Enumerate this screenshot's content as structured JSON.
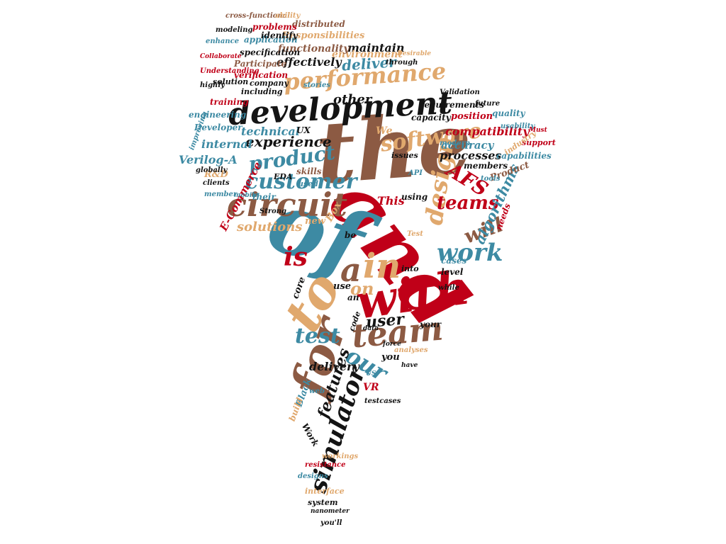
{
  "palette": {
    "red": "#c00018",
    "black": "#141414",
    "teal": "#3d8aa3",
    "tan": "#e0a86d",
    "brown": "#8c5a43"
  },
  "words": {
    "the": "the",
    "and": "and",
    "of": "of",
    "development": "development",
    "circuit": "circuit",
    "with": "with",
    "team": "team",
    "to": "to",
    "for": "for",
    "performance": "performance",
    "customer": "customer",
    "in": "in",
    "a": "a",
    "is": "is",
    "design": "design",
    "software": "software",
    "product": "product",
    "work": "work",
    "simulator": "simulator",
    "teams": "teams",
    "will": "will",
    "our": "our",
    "test": "test",
    "on": "on",
    "user": "user",
    "experience": "experience",
    "features": "features",
    "AFS": "AFS",
    "algorithms": "algorithms",
    "deliver": "deliver",
    "technical": "technical",
    "solutions": "solutions",
    "compatibility": "compatibility",
    "accuracy": "accuracy",
    "processes": "processes",
    "internal": "internal",
    "Verilog-A": "Verilog-A",
    "E-Commerce": "E-Commerce",
    "delivery": "delivery",
    "other": "other",
    "maintain": "maintain",
    "effectively": "effectively",
    "environment": "environment",
    "functionality": "functionality",
    "Responsibilities": "Responsibilities",
    "distributed": "distributed",
    "problems": "problems",
    "application": "application",
    "identify": "identify",
    "specification": "specification",
    "Participate": "Participate",
    "verification": "verification",
    "solution": "solution",
    "company": "company",
    "including": "including",
    "training": "training",
    "engineering": "engineering",
    "Developer": "Developer",
    "requirements": "requirements",
    "capacity": "capacity",
    "position": "position",
    "quality": "quality",
    "capabilities": "capabilities",
    "support": "support",
    "industry": "industry",
    "members": "members",
    "Product": "Product",
    "needs": "needs",
    "cases": "cases",
    "level": "level",
    "into": "into",
    "This": "This",
    "using": "using",
    "EDA": "EDA",
    "their": "their",
    "skills": "skills",
    "used": "used",
    "new": "new",
    "We": "We",
    "UX": "UX",
    "R&D": "R&D",
    "Box": "Box",
    "core": "core",
    "use": "use",
    "an": "an",
    "be": "be",
    "your": "your",
    "you": "you",
    "code": "code",
    "VR": "VR",
    "Black": "Black",
    "build": "build",
    "Work": "Work",
    "issues": "issues",
    "interface": "interface",
    "system": "system",
    "designs": "designs",
    "resistance": "resistance",
    "nanometer": "nanometer",
    "you'll": "you'll",
    "workings": "workings",
    "analyses": "analyses",
    "testcases": "testcases",
    "through": "through",
    "stories": "stories",
    "Validation": "Validation",
    "future": "future",
    "usability": "usability",
    "modern": "modern",
    "tools": "tools",
    "improving": "improving",
    "globally": "globally",
    "clients": "clients",
    "member": "member",
    "highly": "highly",
    "Understanding": "Understanding",
    "cross-functional": "cross-functional",
    "ability": "ability",
    "modeling": "modeling",
    "enhance": "enhance",
    "Desirable": "Desirable",
    "API": "API",
    "Strong": "Strong",
    "web": "web",
    "data": "data",
    "force": "force",
    "have": "have",
    "US": "US",
    "while": "while",
    "Test": "Test",
    "mobile": "mobile",
    "Must": "Must",
    "Collaborate": "Collaborate"
  }
}
